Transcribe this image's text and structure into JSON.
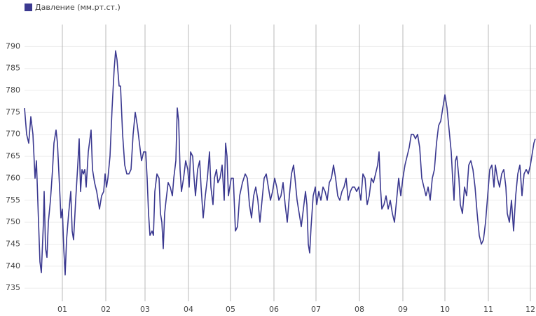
{
  "chart_data": {
    "type": "line",
    "series": [
      {
        "name": "Давление (мм.рт.ст.)",
        "color": "#3b3990",
        "values": [
          776,
          770,
          768,
          774,
          770,
          760,
          764,
          750,
          741,
          738.5,
          750,
          757,
          744,
          742,
          750,
          755,
          762,
          768,
          771,
          768,
          758,
          751,
          753,
          744,
          738,
          746,
          752,
          757,
          748,
          746,
          755,
          763,
          769,
          757,
          762,
          761,
          762,
          758,
          766,
          771,
          762,
          759,
          757,
          753,
          756,
          757,
          761,
          758,
          760,
          765,
          776,
          785,
          789,
          787,
          781,
          781,
          770,
          763,
          761,
          761,
          762,
          770,
          775,
          772,
          768,
          764,
          766,
          766,
          760,
          752,
          747,
          748,
          747,
          757,
          761,
          760,
          752,
          750,
          744,
          752,
          755,
          759,
          758,
          756,
          760,
          764,
          776,
          773,
          762,
          757,
          760,
          764,
          762,
          758,
          766,
          765,
          760,
          756,
          762,
          764,
          758,
          751,
          756,
          760,
          766,
          758,
          754,
          760,
          762,
          759,
          760,
          763,
          755,
          768,
          765,
          756,
          760,
          760,
          748,
          749,
          756,
          759,
          761,
          760,
          754,
          751,
          756,
          758,
          755,
          750,
          755,
          760,
          761,
          758,
          755,
          757,
          760,
          758,
          755,
          756,
          759,
          754,
          750,
          756,
          761,
          763,
          760,
          755,
          752,
          749,
          753,
          757,
          754,
          745,
          743,
          749,
          756,
          758,
          754,
          757,
          755,
          758,
          757,
          755,
          759,
          760,
          763,
          760,
          756,
          755,
          757,
          758,
          760,
          755,
          757,
          758,
          758,
          757,
          758,
          755,
          761,
          760,
          754,
          756,
          760,
          759,
          761,
          763,
          766,
          758,
          753,
          754,
          756,
          753,
          755,
          752,
          750,
          755,
          760,
          756,
          760,
          763,
          765,
          767,
          770,
          770,
          769,
          770,
          767,
          760,
          758,
          756,
          758,
          755,
          760,
          762,
          768,
          772,
          773,
          776,
          779,
          776,
          771,
          766,
          760,
          755,
          764,
          765,
          760,
          754,
          752,
          758,
          756,
          763,
          764,
          762,
          758,
          752,
          747,
          745,
          746,
          750,
          756,
          762,
          763,
          758,
          763,
          760,
          758,
          761,
          762,
          758,
          752,
          750,
          755,
          748,
          756,
          761,
          763,
          756,
          761,
          762,
          761,
          763,
          766,
          768,
          769
        ]
      }
    ],
    "x": [
      -27,
      -25.5,
      -24,
      -22.5,
      -21,
      -19.5,
      -18.5,
      -17,
      -16,
      -15,
      -13.5,
      -13,
      -12,
      -11,
      -10,
      -8.5,
      -7,
      -6,
      -4.5,
      -3.5,
      -2,
      -1,
      0,
      1,
      2,
      3,
      4.5,
      6,
      7,
      8,
      9.5,
      11,
      12,
      13,
      14,
      15,
      16,
      17,
      18.5,
      20.5,
      21.5,
      23,
      24.5,
      26.5,
      28,
      29.5,
      30.5,
      31.5,
      32.5,
      34,
      35.5,
      37,
      38,
      39,
      40.5,
      41.5,
      43,
      44.5,
      46,
      47.5,
      49,
      50.5,
      52,
      53.5,
      55,
      56.5,
      58,
      59.5,
      60.5,
      61.5,
      62.5,
      64,
      65,
      66,
      67.5,
      69,
      70,
      71,
      72,
      73,
      74,
      75.5,
      77,
      78.5,
      79.5,
      81,
      82,
      83,
      84,
      85,
      86.5,
      88,
      89.5,
      90.5,
      91.5,
      93,
      94,
      95,
      96.5,
      98,
      99,
      100.5,
      102,
      103.5,
      105,
      106,
      107.5,
      108.5,
      110,
      111,
      112.5,
      114,
      115.5,
      116.5,
      117.5,
      118.5,
      120.5,
      122,
      123.5,
      125,
      126.5,
      128.5,
      130.5,
      132,
      133.5,
      135,
      136.5,
      138,
      139.5,
      141,
      142.5,
      144,
      145.5,
      147,
      148.5,
      150,
      151.5,
      153,
      154.5,
      156,
      157.5,
      159,
      160.5,
      162,
      163.5,
      165,
      166,
      167.5,
      169,
      170.5,
      172,
      173.5,
      174.5,
      175.5,
      176.5,
      177.5,
      179,
      180.5,
      181.5,
      183,
      184.5,
      186,
      187.5,
      189,
      190.5,
      192,
      193.5,
      195,
      196.5,
      198,
      199.5,
      201,
      202.5,
      204,
      205.5,
      207,
      208.5,
      210,
      211.5,
      213,
      214.5,
      216,
      217.5,
      219,
      220.5,
      222,
      223.5,
      225,
      226,
      227,
      228,
      229.5,
      231,
      232.5,
      234,
      235.5,
      237,
      238.5,
      240,
      241.5,
      243,
      244.5,
      246,
      247.5,
      249,
      250.5,
      252,
      253.5,
      255,
      256.5,
      258,
      259.5,
      261,
      262.5,
      264,
      265.5,
      267,
      268.5,
      270,
      271.5,
      273,
      274.5,
      276,
      277.5,
      278.5,
      279.5,
      280.5,
      281.5,
      283,
      284,
      285.5,
      287,
      288.5,
      290,
      291.5,
      293,
      294.5,
      296,
      297.5,
      299,
      300.5,
      302,
      303.5,
      305,
      306.5,
      308,
      309,
      310.5,
      312,
      313.5,
      315,
      316.5,
      317.5,
      319,
      320.5,
      322,
      323.5,
      325,
      326.5,
      328,
      329.5,
      331,
      332.5,
      334,
      335.5,
      336.5,
      337.5
    ],
    "xlim": [
      -27,
      338
    ],
    "xticks": [
      {
        "value": 0,
        "label": "01"
      },
      {
        "value": 31,
        "label": "02"
      },
      {
        "value": 59,
        "label": "03"
      },
      {
        "value": 90,
        "label": "04"
      },
      {
        "value": 120,
        "label": "05"
      },
      {
        "value": 151,
        "label": "06"
      },
      {
        "value": 181,
        "label": "07"
      },
      {
        "value": 212,
        "label": "08"
      },
      {
        "value": 243,
        "label": "09"
      },
      {
        "value": 273,
        "label": "10"
      },
      {
        "value": 304,
        "label": "11"
      },
      {
        "value": 334,
        "label": "12"
      }
    ],
    "ylim": [
      732,
      795
    ],
    "yticks": [
      735,
      740,
      745,
      750,
      755,
      760,
      765,
      770,
      775,
      780,
      785,
      790
    ],
    "grid": true,
    "legend": "top-left"
  }
}
